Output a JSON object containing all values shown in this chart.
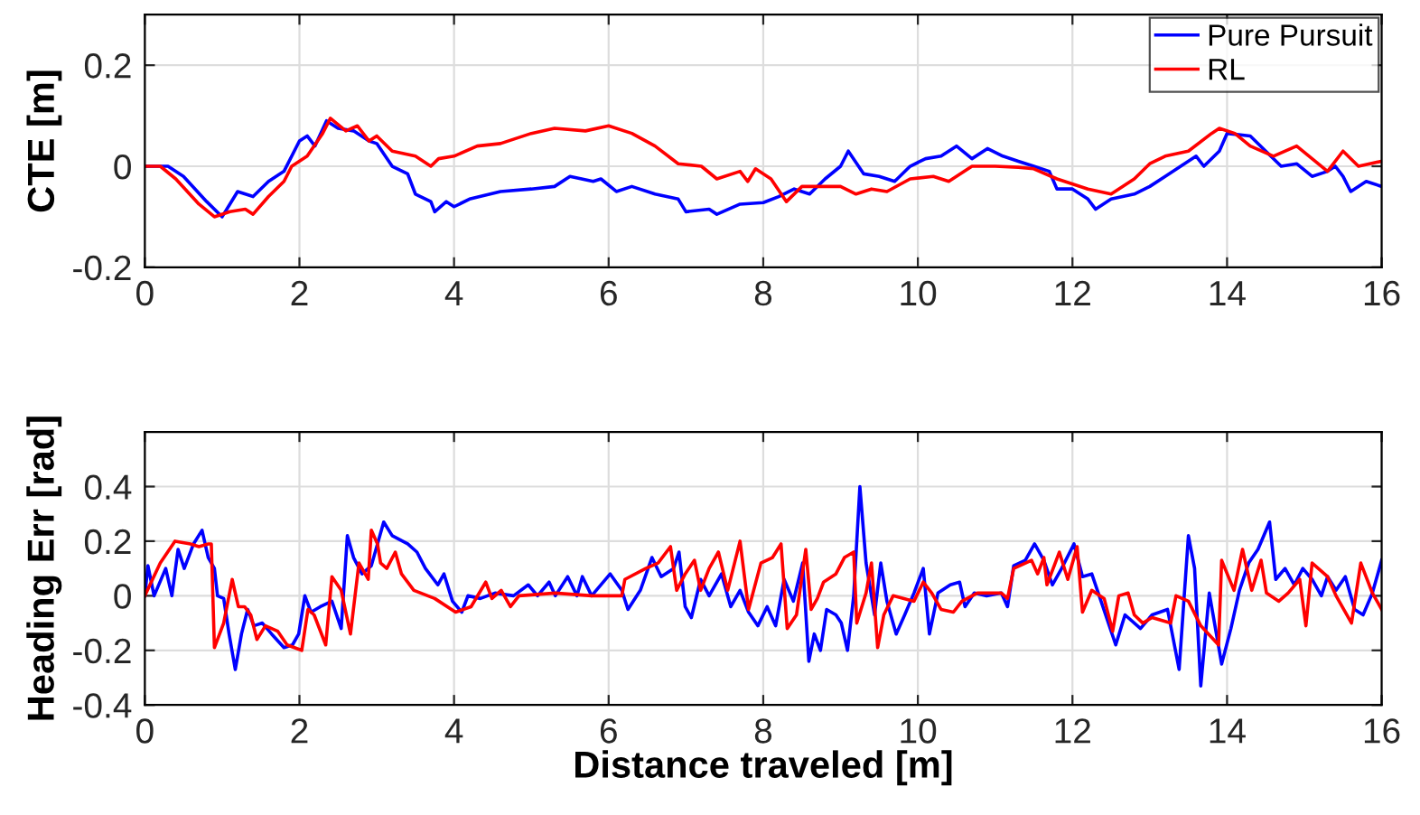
{
  "chart_data": [
    {
      "type": "line",
      "ylabel": "CTE [m]",
      "xlim": [
        0,
        16
      ],
      "xticks": [
        0,
        2,
        4,
        6,
        8,
        10,
        12,
        14,
        16
      ],
      "ylim": [
        -0.2,
        0.3
      ],
      "yticks": [
        -0.2,
        0,
        0.2
      ],
      "grid": true,
      "legend": "top right",
      "series": [
        {
          "name": "Pure Pursuit",
          "color": "#0000ff",
          "x": [
            0,
            0.3,
            0.5,
            0.8,
            1.0,
            1.2,
            1.4,
            1.6,
            1.8,
            2.0,
            2.1,
            2.2,
            2.35,
            2.5,
            2.7,
            2.9,
            3.0,
            3.2,
            3.4,
            3.5,
            3.7,
            3.75,
            3.9,
            4.0,
            4.2,
            4.6,
            5.0,
            5.3,
            5.5,
            5.8,
            5.9,
            6.1,
            6.3,
            6.6,
            6.9,
            7.0,
            7.3,
            7.4,
            7.7,
            8.0,
            8.2,
            8.4,
            8.6,
            8.8,
            9.0,
            9.1,
            9.3,
            9.5,
            9.7,
            9.9,
            10.1,
            10.3,
            10.5,
            10.7,
            10.9,
            11.1,
            11.3,
            11.5,
            11.7,
            11.8,
            12.0,
            12.2,
            12.3,
            12.5,
            12.8,
            13.0,
            13.2,
            13.4,
            13.6,
            13.7,
            13.9,
            14.0,
            14.3,
            14.5,
            14.7,
            14.9,
            15.1,
            15.3,
            15.4,
            15.5,
            15.6,
            15.8,
            16
          ],
          "values": [
            0,
            0,
            -0.02,
            -0.07,
            -0.1,
            -0.05,
            -0.06,
            -0.03,
            -0.01,
            0.05,
            0.06,
            0.04,
            0.09,
            0.075,
            0.07,
            0.05,
            0.045,
            0,
            -0.015,
            -0.055,
            -0.07,
            -0.09,
            -0.07,
            -0.08,
            -0.065,
            -0.05,
            -0.045,
            -0.04,
            -0.02,
            -0.03,
            -0.025,
            -0.05,
            -0.04,
            -0.055,
            -0.065,
            -0.09,
            -0.085,
            -0.095,
            -0.075,
            -0.072,
            -0.06,
            -0.045,
            -0.055,
            -0.025,
            0,
            0.03,
            -0.015,
            -0.02,
            -0.03,
            0,
            0.015,
            0.02,
            0.04,
            0.015,
            0.035,
            0.02,
            0.01,
            0,
            -0.01,
            -0.045,
            -0.045,
            -0.065,
            -0.085,
            -0.065,
            -0.055,
            -0.04,
            -0.02,
            0,
            0.02,
            0,
            0.03,
            0.065,
            0.06,
            0.03,
            0,
            0.005,
            -0.02,
            -0.01,
            0,
            -0.02,
            -0.05,
            -0.03,
            -0.04
          ]
        },
        {
          "name": "RL",
          "color": "#ff0000",
          "x": [
            0,
            0.2,
            0.4,
            0.7,
            0.9,
            1.1,
            1.3,
            1.4,
            1.6,
            1.8,
            1.9,
            2.1,
            2.3,
            2.4,
            2.6,
            2.75,
            2.9,
            3.0,
            3.2,
            3.5,
            3.7,
            3.8,
            4.0,
            4.3,
            4.6,
            5.0,
            5.3,
            5.7,
            6.0,
            6.3,
            6.6,
            6.9,
            7.2,
            7.4,
            7.7,
            7.8,
            7.9,
            8.1,
            8.3,
            8.5,
            9.0,
            9.2,
            9.4,
            9.6,
            9.9,
            10.2,
            10.4,
            10.7,
            11.0,
            11.3,
            11.5,
            11.8,
            12.2,
            12.5,
            12.8,
            13.0,
            13.2,
            13.5,
            13.8,
            13.9,
            14.1,
            14.3,
            14.6,
            14.9,
            15.1,
            15.3,
            15.5,
            15.7,
            16
          ],
          "values": [
            0,
            0,
            -0.025,
            -0.075,
            -0.1,
            -0.09,
            -0.085,
            -0.095,
            -0.06,
            -0.03,
            0,
            0.02,
            0.065,
            0.095,
            0.07,
            0.08,
            0.05,
            0.06,
            0.03,
            0.02,
            0,
            0.015,
            0.02,
            0.04,
            0.045,
            0.065,
            0.075,
            0.07,
            0.08,
            0.065,
            0.04,
            0.005,
            0,
            -0.025,
            -0.01,
            -0.03,
            -0.005,
            -0.025,
            -0.07,
            -0.04,
            -0.04,
            -0.055,
            -0.045,
            -0.05,
            -0.025,
            -0.02,
            -0.03,
            0,
            0,
            -0.002,
            -0.005,
            -0.025,
            -0.045,
            -0.055,
            -0.025,
            0.005,
            0.02,
            0.03,
            0.065,
            0.075,
            0.065,
            0.04,
            0.02,
            0.04,
            0.015,
            -0.01,
            0.03,
            0,
            0.01
          ]
        }
      ]
    },
    {
      "type": "line",
      "xlabel": "Distance traveled [m]",
      "ylabel": "Heading Err [rad]",
      "xlim": [
        0,
        16
      ],
      "xticks": [
        0,
        2,
        4,
        6,
        8,
        10,
        12,
        14,
        16
      ],
      "ylim": [
        -0.4,
        0.6
      ],
      "yticks": [
        -0.4,
        -0.2,
        0,
        0.2,
        0.4
      ],
      "grid": true,
      "series": [
        {
          "color": "#0000ff",
          "x": [
            0,
            0.04,
            0.12,
            0.27,
            0.35,
            0.43,
            0.51,
            0.63,
            0.74,
            0.82,
            0.9,
            0.94,
            1.02,
            1.09,
            1.17,
            1.25,
            1.33,
            1.41,
            1.52,
            1.64,
            1.8,
            1.91,
            1.99,
            2.07,
            2.15,
            2.27,
            2.42,
            2.54,
            2.62,
            2.7,
            2.81,
            2.93,
            3.09,
            3.2,
            3.4,
            3.52,
            3.63,
            3.79,
            3.87,
            3.98,
            4.1,
            4.18,
            4.34,
            4.53,
            4.77,
            4.96,
            5.08,
            5.23,
            5.31,
            5.47,
            5.59,
            5.66,
            5.78,
            6.02,
            6.17,
            6.25,
            6.41,
            6.56,
            6.68,
            6.84,
            6.91,
            6.99,
            7.07,
            7.19,
            7.3,
            7.46,
            7.58,
            7.7,
            7.81,
            7.93,
            8.05,
            8.16,
            8.27,
            8.39,
            8.51,
            8.59,
            8.66,
            8.74,
            8.82,
            8.94,
            9.01,
            9.09,
            9.17,
            9.25,
            9.33,
            9.44,
            9.52,
            9.6,
            9.72,
            9.83,
            9.95,
            10.07,
            10.15,
            10.26,
            10.42,
            10.54,
            10.61,
            10.73,
            10.89,
            11.08,
            11.16,
            11.24,
            11.39,
            11.51,
            11.63,
            11.74,
            11.86,
            12.02,
            12.13,
            12.25,
            12.37,
            12.56,
            12.68,
            12.88,
            13.03,
            13.23,
            13.38,
            13.5,
            13.58,
            13.66,
            13.77,
            13.93,
            14.05,
            14.16,
            14.28,
            14.4,
            14.55,
            14.63,
            14.75,
            14.87,
            14.98,
            15.1,
            15.22,
            15.3,
            15.41,
            15.53,
            15.65,
            15.76,
            15.88,
            16
          ],
          "values": [
            0,
            0.11,
            0,
            0.1,
            0,
            0.17,
            0.1,
            0.19,
            0.24,
            0.14,
            0.1,
            0,
            -0.01,
            -0.14,
            -0.27,
            -0.14,
            -0.05,
            -0.11,
            -0.1,
            -0.14,
            -0.19,
            -0.18,
            -0.14,
            0,
            -0.06,
            -0.04,
            -0.02,
            -0.12,
            0.22,
            0.14,
            0.08,
            0.11,
            0.27,
            0.22,
            0.19,
            0.16,
            0.1,
            0.04,
            0.08,
            -0.02,
            -0.06,
            0,
            -0.01,
            0.01,
            0,
            0.04,
            0,
            0.05,
            0,
            0.07,
            0,
            0.07,
            0,
            0.08,
            0.02,
            -0.05,
            0.02,
            0.14,
            0.07,
            0.1,
            0.16,
            -0.04,
            -0.08,
            0.06,
            0,
            0.08,
            -0.04,
            0.02,
            -0.06,
            -0.11,
            -0.04,
            -0.11,
            0.06,
            -0.02,
            0.12,
            -0.24,
            -0.14,
            -0.2,
            -0.05,
            -0.07,
            -0.1,
            -0.2,
            0,
            0.4,
            0.12,
            -0.07,
            0.12,
            -0.02,
            -0.14,
            -0.07,
            0.01,
            0.1,
            -0.14,
            0.01,
            0.04,
            0.05,
            -0.04,
            0.01,
            0,
            0.01,
            -0.04,
            0.11,
            0.13,
            0.19,
            0.13,
            0.04,
            0.1,
            0.19,
            0.07,
            0.08,
            -0.02,
            -0.18,
            -0.07,
            -0.12,
            -0.07,
            -0.05,
            -0.27,
            0.22,
            0.1,
            -0.33,
            0.01,
            -0.25,
            -0.12,
            0.02,
            0.12,
            0.17,
            0.27,
            0.06,
            0.1,
            0.04,
            0.1,
            0.06,
            0,
            0.07,
            0.02,
            0.07,
            -0.05,
            -0.07,
            0.01,
            0.13
          ]
        },
        {
          "color": "#ff0000",
          "x": [
            0,
            0.2,
            0.39,
            0.59,
            0.7,
            0.82,
            0.86,
            0.9,
            1.02,
            1.13,
            1.21,
            1.29,
            1.37,
            1.45,
            1.56,
            1.72,
            1.84,
            2.03,
            2.11,
            2.19,
            2.34,
            2.42,
            2.54,
            2.66,
            2.77,
            2.89,
            2.93,
            3.01,
            3.05,
            3.13,
            3.24,
            3.32,
            3.48,
            3.75,
            4.02,
            4.22,
            4.41,
            4.49,
            4.61,
            4.73,
            4.84,
            5.31,
            5.78,
            6.17,
            6.21,
            6.48,
            6.64,
            6.8,
            6.88,
            6.99,
            7.11,
            7.19,
            7.3,
            7.42,
            7.54,
            7.7,
            7.81,
            7.97,
            8.12,
            8.23,
            8.31,
            8.43,
            8.55,
            8.62,
            8.7,
            8.78,
            8.94,
            9.05,
            9.17,
            9.21,
            9.33,
            9.4,
            9.48,
            9.56,
            9.68,
            9.95,
            10.07,
            10.18,
            10.3,
            10.46,
            10.57,
            10.77,
            11.08,
            11.16,
            11.24,
            11.47,
            11.55,
            11.63,
            11.67,
            11.83,
            11.94,
            12.06,
            12.13,
            12.25,
            12.41,
            12.52,
            12.6,
            12.72,
            12.8,
            12.91,
            13.03,
            13.27,
            13.34,
            13.5,
            13.66,
            13.89,
            13.93,
            14.09,
            14.2,
            14.32,
            14.44,
            14.51,
            14.67,
            14.79,
            14.94,
            15.02,
            15.1,
            15.3,
            15.41,
            15.61,
            15.73,
            15.88,
            16
          ],
          "values": [
            0,
            0.12,
            0.2,
            0.19,
            0.18,
            0.19,
            0.19,
            -0.19,
            -0.1,
            0.06,
            -0.04,
            -0.04,
            -0.07,
            -0.16,
            -0.11,
            -0.13,
            -0.18,
            -0.2,
            -0.05,
            -0.07,
            -0.18,
            0.07,
            0.02,
            -0.14,
            0.12,
            0.06,
            0.24,
            0.19,
            0.12,
            0.1,
            0.16,
            0.08,
            0.02,
            -0.01,
            -0.06,
            -0.04,
            0.05,
            -0.01,
            0.02,
            -0.04,
            0,
            0.01,
            0,
            0,
            0.06,
            0.1,
            0.12,
            0.18,
            0.02,
            0.08,
            0.13,
            0.02,
            0.1,
            0.16,
            0.02,
            0.2,
            -0.05,
            0.12,
            0.14,
            0.19,
            -0.12,
            -0.07,
            0.17,
            -0.05,
            -0.01,
            0.05,
            0.08,
            0.14,
            0.16,
            -0.1,
            0.01,
            0.12,
            -0.19,
            -0.07,
            0,
            -0.02,
            0.05,
            0.01,
            -0.05,
            -0.06,
            -0.02,
            0.01,
            0.01,
            -0.01,
            0.1,
            0.13,
            0.08,
            0.14,
            0.04,
            0.16,
            0.06,
            0.18,
            -0.06,
            0.02,
            -0.01,
            -0.13,
            0,
            0.01,
            -0.07,
            -0.1,
            -0.08,
            -0.1,
            0,
            -0.02,
            -0.11,
            -0.18,
            0.13,
            0.02,
            0.17,
            0.02,
            0.13,
            0.01,
            -0.02,
            0.01,
            0.06,
            -0.11,
            0.12,
            0.07,
            0,
            -0.1,
            0.12,
            0.01,
            -0.05
          ]
        }
      ]
    }
  ]
}
